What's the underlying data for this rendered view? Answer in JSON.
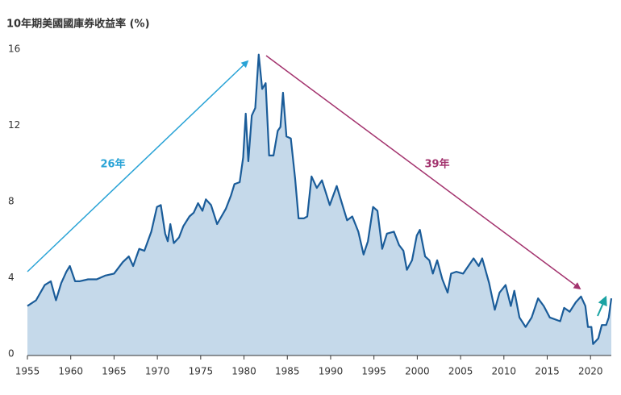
{
  "chart_data": {
    "type": "area",
    "title": "10年期美國國庫券收益率 (%)",
    "x": [
      1955,
      1956,
      1957,
      1957.7,
      1958.3,
      1958.9,
      1959.5,
      1959.9,
      1960.5,
      1961,
      1962,
      1963,
      1964,
      1965,
      1966,
      1966.7,
      1967.2,
      1967.9,
      1968.5,
      1969.3,
      1969.95,
      1970.4,
      1970.9,
      1971.2,
      1971.5,
      1971.9,
      1972.5,
      1973,
      1973.7,
      1974.2,
      1974.7,
      1975.2,
      1975.6,
      1976.2,
      1976.9,
      1977.4,
      1977.9,
      1978.5,
      1978.9,
      1979.5,
      1979.9,
      1980.2,
      1980.5,
      1980.9,
      1981.3,
      1981.7,
      1982.1,
      1982.5,
      1982.9,
      1983.4,
      1983.9,
      1984.2,
      1984.5,
      1984.9,
      1985.4,
      1985.9,
      1986.3,
      1986.9,
      1987.3,
      1987.8,
      1988.4,
      1989,
      1989.9,
      1990.3,
      1990.7,
      1991.3,
      1991.9,
      1992.5,
      1993.2,
      1993.8,
      1994.3,
      1994.9,
      1995.4,
      1995.95,
      1996.5,
      1997.3,
      1997.9,
      1998.4,
      1998.8,
      1999.4,
      1999.95,
      2000.3,
      2000.9,
      2001.4,
      2001.8,
      2002.3,
      2002.9,
      2003.5,
      2003.9,
      2004.5,
      2005.3,
      2006.5,
      2007.1,
      2007.5,
      2008.3,
      2008.95,
      2009.5,
      2010.2,
      2010.8,
      2011.2,
      2011.8,
      2012.5,
      2013.2,
      2013.95,
      2014.6,
      2015.3,
      2016.5,
      2016.95,
      2017.6,
      2018.3,
      2018.9,
      2019.4,
      2019.7,
      2020.1,
      2020.3,
      2020.9,
      2021.3,
      2021.8,
      2022.1,
      2022.4
    ],
    "values": [
      2.6,
      2.9,
      3.7,
      3.9,
      2.9,
      3.8,
      4.4,
      4.7,
      3.9,
      3.9,
      4.0,
      4.0,
      4.2,
      4.3,
      4.9,
      5.2,
      4.7,
      5.6,
      5.5,
      6.5,
      7.8,
      7.9,
      6.4,
      6.0,
      6.9,
      5.9,
      6.2,
      6.8,
      7.3,
      7.5,
      8.0,
      7.6,
      8.2,
      7.9,
      6.9,
      7.3,
      7.7,
      8.4,
      9.0,
      9.1,
      10.4,
      12.7,
      10.2,
      12.6,
      13.0,
      15.8,
      14.0,
      14.3,
      10.5,
      10.5,
      11.8,
      12.0,
      13.8,
      11.5,
      11.4,
      9.3,
      7.2,
      7.2,
      7.3,
      9.4,
      8.8,
      9.2,
      7.9,
      8.4,
      8.9,
      8.0,
      7.1,
      7.3,
      6.5,
      5.3,
      6.0,
      7.8,
      7.6,
      5.6,
      6.4,
      6.5,
      5.8,
      5.5,
      4.5,
      5.0,
      6.3,
      6.6,
      5.2,
      5.0,
      4.3,
      5.0,
      4.0,
      3.3,
      4.3,
      4.4,
      4.3,
      5.1,
      4.7,
      5.1,
      3.8,
      2.4,
      3.3,
      3.7,
      2.6,
      3.4,
      2.0,
      1.5,
      2.0,
      3.0,
      2.6,
      2.0,
      1.8,
      2.5,
      2.3,
      2.8,
      3.1,
      2.6,
      1.5,
      1.5,
      0.6,
      0.9,
      1.6,
      1.6,
      2.0,
      3.0
    ],
    "line_color": "#1a5c99",
    "fill_color": "#c5d9ea",
    "xlim": [
      1955,
      2022.4
    ],
    "xticks": [
      1955,
      1960,
      1965,
      1970,
      1975,
      1980,
      1985,
      1990,
      1995,
      2000,
      2005,
      2010,
      2015,
      2020
    ],
    "ylim": [
      0,
      16
    ],
    "yticks": [
      0,
      4,
      8,
      12,
      16
    ],
    "annotations": [
      {
        "text": "26年",
        "color": "#29a3d6"
      },
      {
        "text": "39年",
        "color": "#a3336e"
      }
    ]
  }
}
